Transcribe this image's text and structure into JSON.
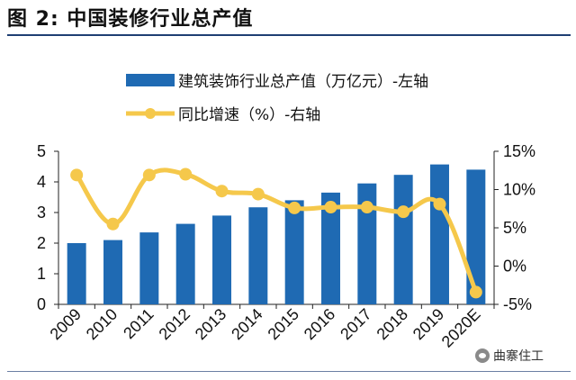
{
  "figure_title": "图 2:  中国装修行业总产值",
  "watermark": "曲寨住工",
  "colors": {
    "bar": "#1f6ab3",
    "line": "#f5c84b",
    "title_rule": "#1f3f73"
  },
  "chart_data": {
    "type": "bar+line",
    "categories": [
      "2009",
      "2010",
      "2011",
      "2012",
      "2013",
      "2014",
      "2015",
      "2016",
      "2017",
      "2018",
      "2019",
      "2020E"
    ],
    "series": [
      {
        "name": "建筑装饰行业总产值（万亿元）-左轴",
        "type": "bar",
        "axis": "left",
        "values": [
          2.0,
          2.1,
          2.35,
          2.63,
          2.9,
          3.17,
          3.4,
          3.65,
          3.95,
          4.23,
          4.57,
          4.4
        ]
      },
      {
        "name": "同比增速（%）-右轴",
        "type": "line",
        "axis": "right",
        "values": [
          11.9,
          5.5,
          11.9,
          12.0,
          9.8,
          9.4,
          7.6,
          7.7,
          7.7,
          7.1,
          8.1,
          -3.4
        ]
      }
    ],
    "left_axis": {
      "min": 0,
      "max": 5,
      "ticks": [
        "0",
        "1",
        "2",
        "3",
        "4",
        "5"
      ]
    },
    "right_axis": {
      "min": -5,
      "max": 15,
      "ticks": [
        "-5%",
        "0%",
        "5%",
        "10%",
        "15%"
      ]
    },
    "legend_position": "top",
    "grid": false
  }
}
